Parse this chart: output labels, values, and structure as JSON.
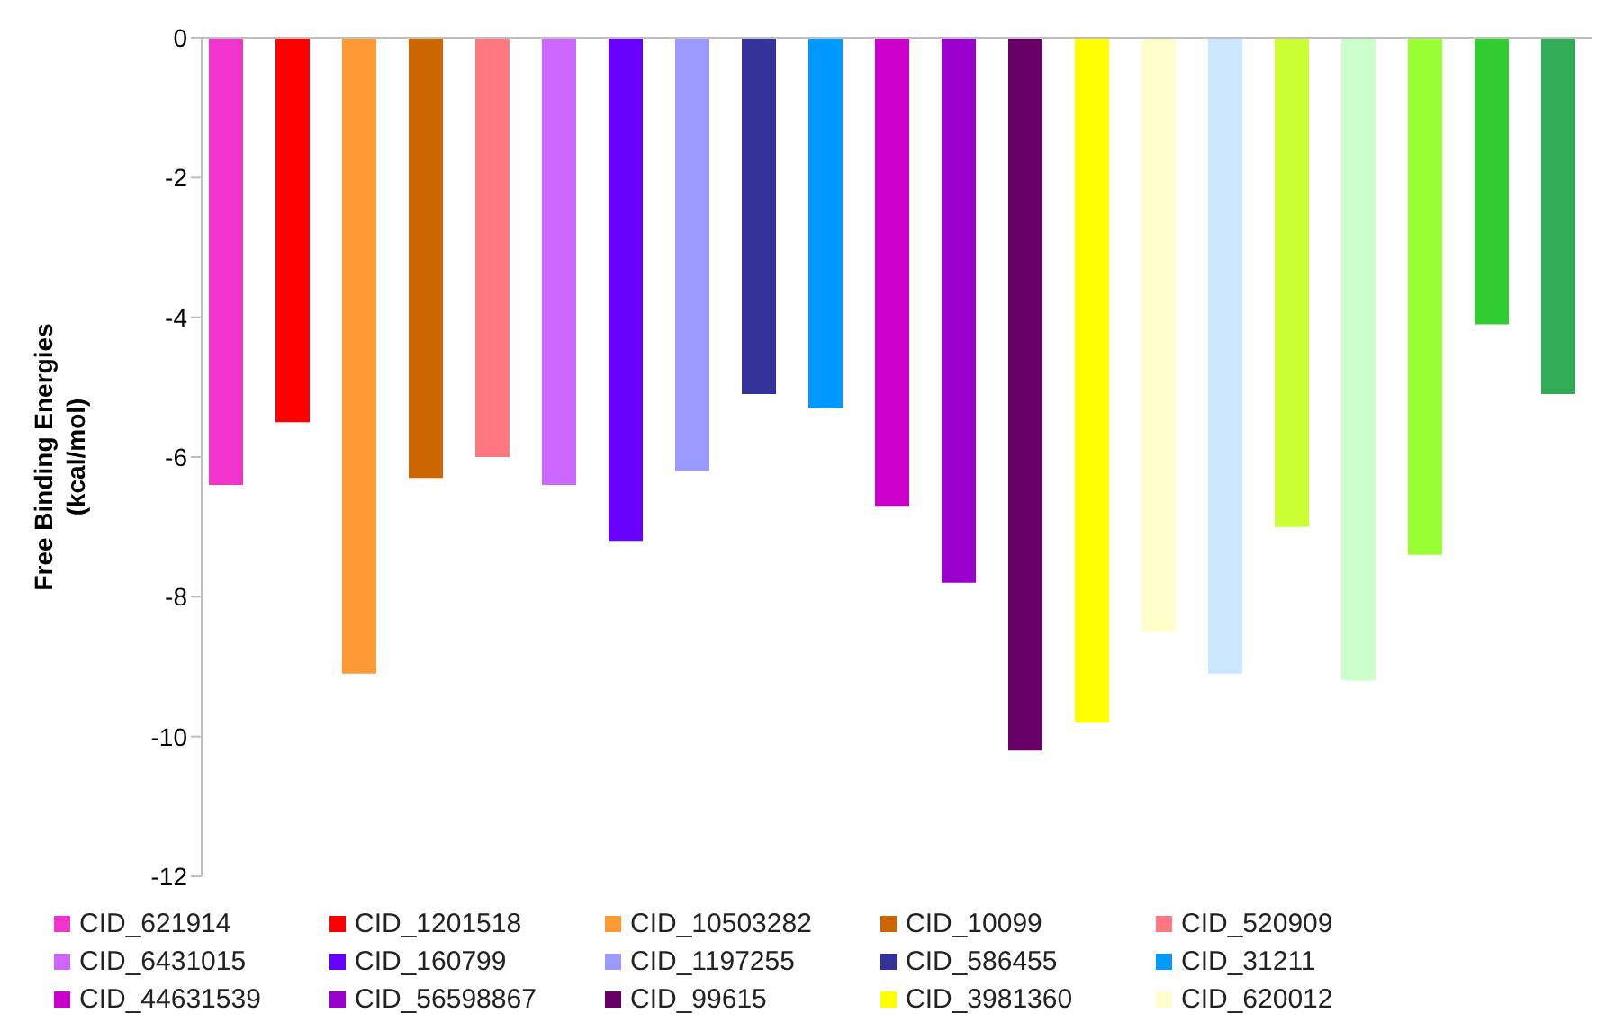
{
  "chart_data": {
    "type": "bar",
    "ylabel": "Free Binding Energies (kcal/mol)",
    "categories": [
      null
    ],
    "ylim": [
      -12,
      0
    ],
    "yticks": [
      -12,
      -10,
      -8,
      -6,
      -4,
      -2,
      0
    ],
    "legend": "bottom",
    "series": [
      {
        "name": "CID_621914",
        "color": "#f033cc",
        "values": [
          -6.4
        ]
      },
      {
        "name": "CID_1201518",
        "color": "#ff0000",
        "values": [
          -5.5
        ]
      },
      {
        "name": "CID_10503282",
        "color": "#ff9933",
        "values": [
          -9.1
        ]
      },
      {
        "name": "CID_10099",
        "color": "#cc6600",
        "values": [
          -6.3
        ]
      },
      {
        "name": "CID_520909",
        "color": "#ff7780",
        "values": [
          -6.0
        ]
      },
      {
        "name": "CID_6431015",
        "color": "#cc66ff",
        "values": [
          -6.4
        ]
      },
      {
        "name": "CID_160799",
        "color": "#6600ff",
        "values": [
          -7.2
        ]
      },
      {
        "name": "CID_1197255",
        "color": "#9999ff",
        "values": [
          -6.2
        ]
      },
      {
        "name": "CID_586455",
        "color": "#333399",
        "values": [
          -5.1
        ]
      },
      {
        "name": "CID_31211",
        "color": "#0099ff",
        "values": [
          -5.3
        ]
      },
      {
        "name": "CID_44631539",
        "color": "#cc00cc",
        "values": [
          -6.7
        ]
      },
      {
        "name": "CID_56598867",
        "color": "#9900cc",
        "values": [
          -7.8
        ]
      },
      {
        "name": "CID_99615",
        "color": "#660066",
        "values": [
          -10.2
        ]
      },
      {
        "name": "CID_3981360",
        "color": "#ffff00",
        "values": [
          -9.8
        ]
      },
      {
        "name": "CID_620012",
        "color": "#ffffcc",
        "values": [
          -8.5
        ]
      },
      {
        "color": "#cce6ff",
        "values": [
          -9.1
        ]
      },
      {
        "color": "#ccff33",
        "values": [
          -7.0
        ]
      },
      {
        "color": "#ccffcc",
        "values": [
          -9.2
        ]
      },
      {
        "color": "#99ff33",
        "values": [
          -7.4
        ]
      },
      {
        "color": "#33cc33",
        "values": [
          -4.1
        ]
      },
      {
        "color": "#33aa55",
        "values": [
          -5.1
        ]
      }
    ]
  }
}
